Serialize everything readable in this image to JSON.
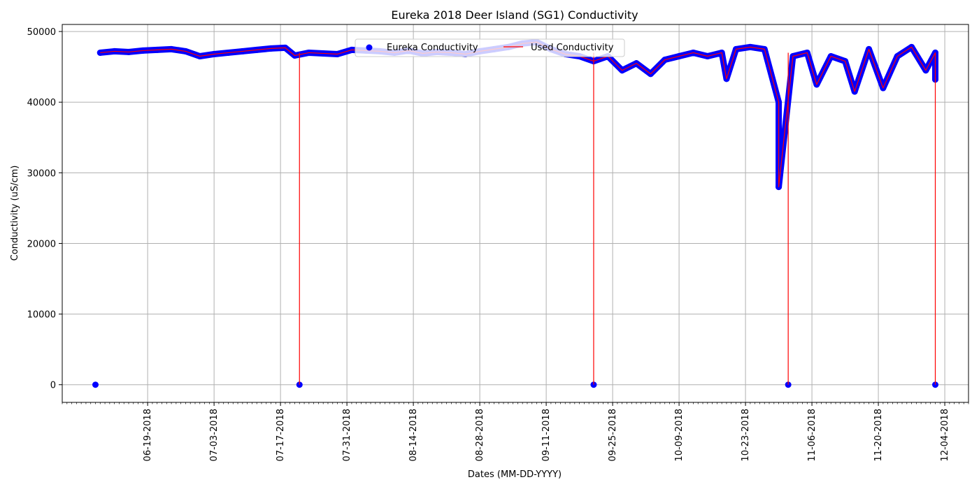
{
  "chart_data": {
    "type": "scatter",
    "title": "Eureka 2018 Deer Island (SG1) Conductivity",
    "xlabel": "Dates (MM-DD-YYYY)",
    "ylabel": "Conductivity (uS/cm)",
    "x_range": [
      "2018-06-01",
      "2018-12-09"
    ],
    "ylim": [
      -2500,
      51000
    ],
    "grid": true,
    "legend_position": "upper-center",
    "x_ticks": [
      "06-19-2018",
      "07-03-2018",
      "07-17-2018",
      "07-31-2018",
      "08-14-2018",
      "08-28-2018",
      "09-11-2018",
      "09-25-2018",
      "10-09-2018",
      "10-23-2018",
      "11-06-2018",
      "11-20-2018",
      "12-04-2018"
    ],
    "y_ticks": [
      0,
      10000,
      20000,
      30000,
      40000,
      50000
    ],
    "series": [
      {
        "name": "Eureka Conductivity",
        "kind": "scatter",
        "color": "#0000ff",
        "points": [
          [
            "2018-06-09",
            47000
          ],
          [
            "2018-06-12",
            47200
          ],
          [
            "2018-06-15",
            47100
          ],
          [
            "2018-06-18",
            47300
          ],
          [
            "2018-06-21",
            47400
          ],
          [
            "2018-06-24",
            47500
          ],
          [
            "2018-06-27",
            47200
          ],
          [
            "2018-06-30",
            46500
          ],
          [
            "2018-07-03",
            46800
          ],
          [
            "2018-07-06",
            47000
          ],
          [
            "2018-07-09",
            47200
          ],
          [
            "2018-07-12",
            47400
          ],
          [
            "2018-07-15",
            47600
          ],
          [
            "2018-07-18",
            47700
          ],
          [
            "2018-07-20",
            46600
          ],
          [
            "2018-07-23",
            47000
          ],
          [
            "2018-07-26",
            46900
          ],
          [
            "2018-07-29",
            46800
          ],
          [
            "2018-08-01",
            47400
          ],
          [
            "2018-08-04",
            47300
          ],
          [
            "2018-08-07",
            47200
          ],
          [
            "2018-08-10",
            47000
          ],
          [
            "2018-08-13",
            47300
          ],
          [
            "2018-08-16",
            46900
          ],
          [
            "2018-08-19",
            47100
          ],
          [
            "2018-08-22",
            47000
          ],
          [
            "2018-08-25",
            46800
          ],
          [
            "2018-08-28",
            47200
          ],
          [
            "2018-08-31",
            47500
          ],
          [
            "2018-09-03",
            47800
          ],
          [
            "2018-09-06",
            48300
          ],
          [
            "2018-09-09",
            48500
          ],
          [
            "2018-09-12",
            47500
          ],
          [
            "2018-09-15",
            46800
          ],
          [
            "2018-09-18",
            46500
          ],
          [
            "2018-09-21",
            45800
          ],
          [
            "2018-09-24",
            46500
          ],
          [
            "2018-09-27",
            44500
          ],
          [
            "2018-09-30",
            45500
          ],
          [
            "2018-10-03",
            44000
          ],
          [
            "2018-10-06",
            46000
          ],
          [
            "2018-10-09",
            46500
          ],
          [
            "2018-10-12",
            47000
          ],
          [
            "2018-10-15",
            46500
          ],
          [
            "2018-10-18",
            47000
          ],
          [
            "2018-10-19",
            43300
          ],
          [
            "2018-10-21",
            47500
          ],
          [
            "2018-10-24",
            47800
          ],
          [
            "2018-10-27",
            47500
          ],
          [
            "2018-10-30",
            40000
          ],
          [
            "2018-10-30",
            28000
          ],
          [
            "2018-11-02",
            46500
          ],
          [
            "2018-11-05",
            47000
          ],
          [
            "2018-11-07",
            42500
          ],
          [
            "2018-11-10",
            46500
          ],
          [
            "2018-11-13",
            45800
          ],
          [
            "2018-11-15",
            41500
          ],
          [
            "2018-11-18",
            47500
          ],
          [
            "2018-11-21",
            42000
          ],
          [
            "2018-11-24",
            46500
          ],
          [
            "2018-11-27",
            47800
          ],
          [
            "2018-11-30",
            44500
          ],
          [
            "2018-12-02",
            47000
          ],
          [
            "2018-12-02",
            43200
          ]
        ],
        "zero_points": [
          [
            "2018-06-08",
            0
          ],
          [
            "2018-07-21",
            0
          ],
          [
            "2018-09-21",
            0
          ],
          [
            "2018-11-01",
            0
          ],
          [
            "2018-12-02",
            0
          ]
        ]
      },
      {
        "name": "Used Conductivity",
        "kind": "line",
        "color": "#ff0000",
        "drops": [
          "2018-07-21",
          "2018-09-21",
          "2018-11-01",
          "2018-12-02"
        ]
      }
    ]
  }
}
